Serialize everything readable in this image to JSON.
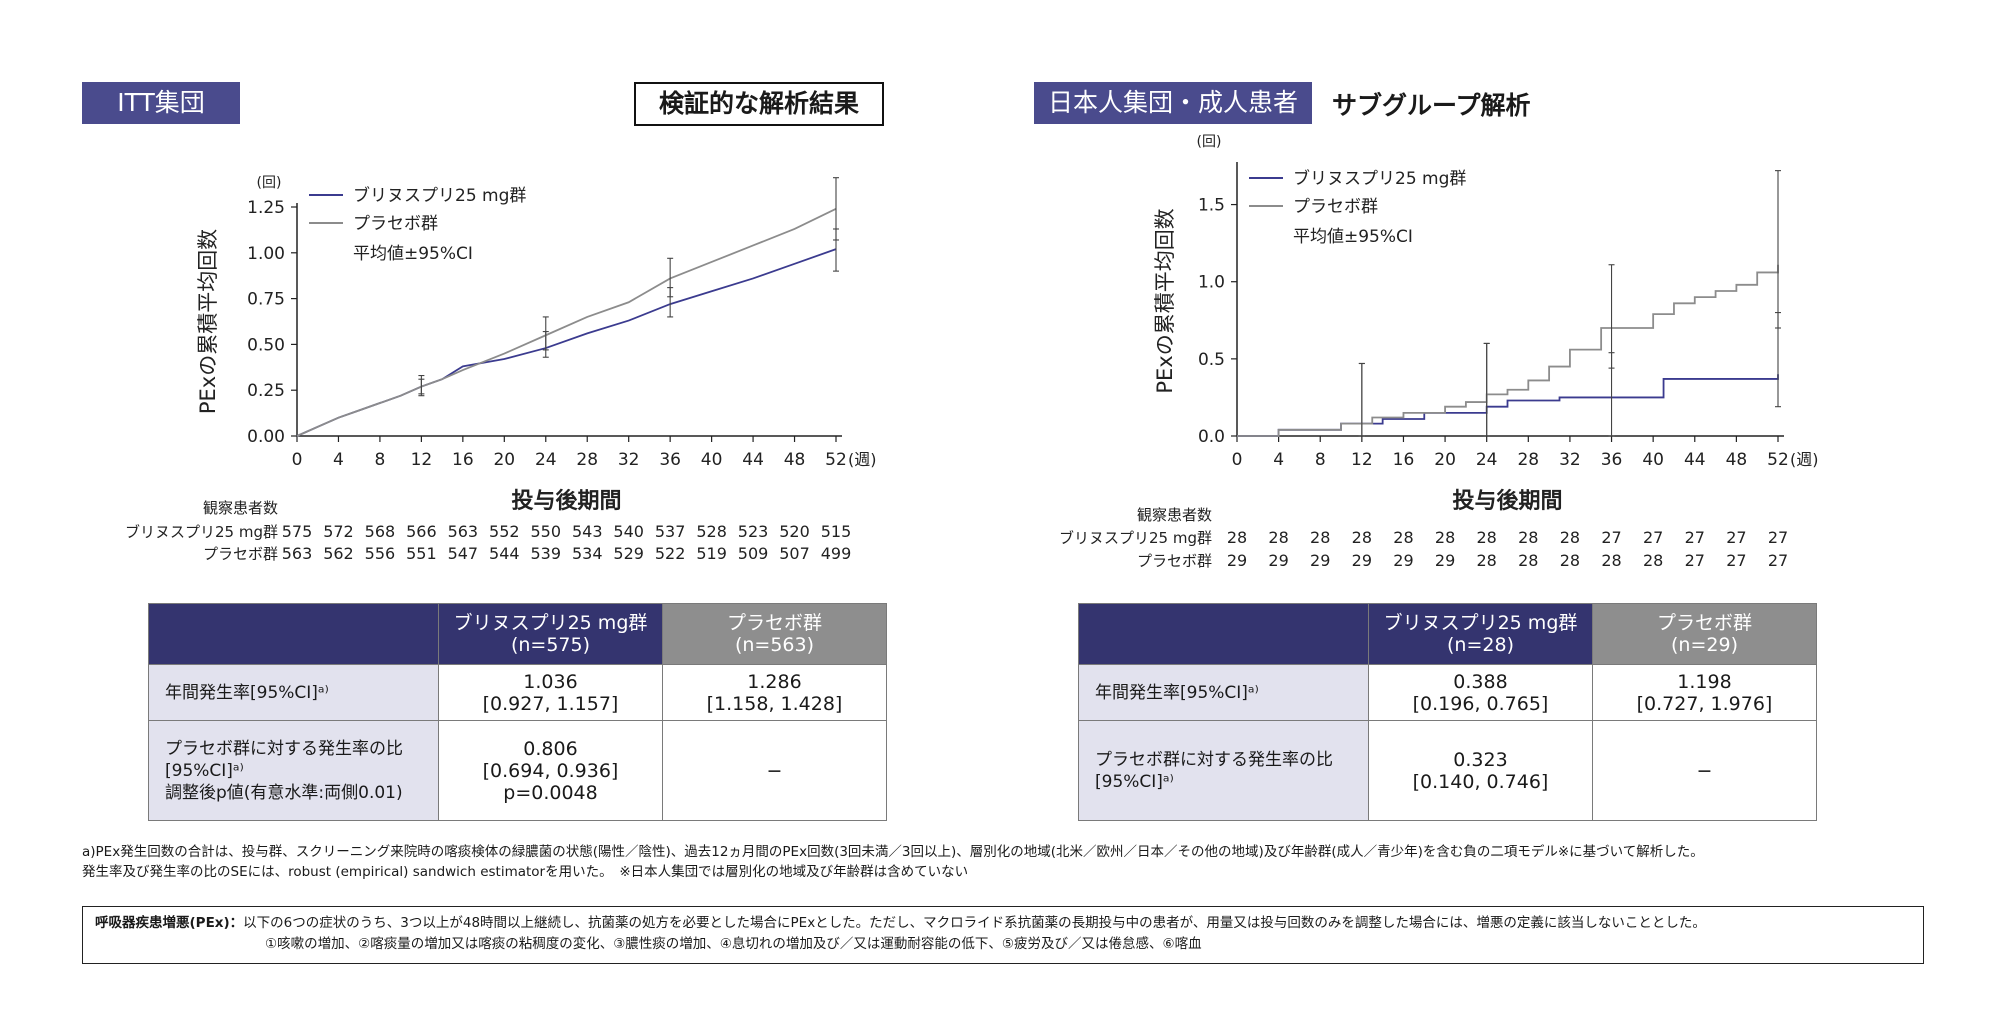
{
  "left": {
    "tag": "ITT集団",
    "title": "検証的な解析結果",
    "table": {
      "col_a": [
        "ブリヌスプリ25 mg群",
        "(n=575)"
      ],
      "col_b": [
        "プラセボ群",
        "(n=563)"
      ],
      "rows": [
        {
          "label": [
            "年間発生率[95%CI]ᵃ⁾"
          ],
          "a": [
            "1.036",
            "[0.927, 1.157]"
          ],
          "b": [
            "1.286",
            "[1.158, 1.428]"
          ]
        },
        {
          "label": [
            "プラセボ群に対する発生率の比",
            "[95%CI]ᵃ⁾",
            "調整後p値(有意水準:両側0.01)"
          ],
          "a": [
            "0.806",
            "[0.694, 0.936]",
            "p=0.0048"
          ],
          "b": [
            "−"
          ]
        }
      ]
    }
  },
  "right": {
    "tag": "日本人集団・成人患者",
    "title": "サブグループ解析",
    "table": {
      "col_a": [
        "ブリヌスプリ25 mg群",
        "(n=28)"
      ],
      "col_b": [
        "プラセボ群",
        "(n=29)"
      ],
      "rows": [
        {
          "label": [
            "年間発生率[95%CI]ᵃ⁾"
          ],
          "a": [
            "0.388",
            "[0.196, 0.765]"
          ],
          "b": [
            "1.198",
            "[0.727, 1.976]"
          ]
        },
        {
          "label": [
            "プラセボ群に対する発生率の比",
            "[95%CI]ᵃ⁾"
          ],
          "a": [
            "0.323",
            "[0.140, 0.746]"
          ],
          "b": [
            "−"
          ]
        }
      ]
    }
  },
  "chart_data": [
    {
      "type": "line",
      "ylabel": "PExの累積平均回数",
      "xlabel": "投与後期間",
      "y_unit": "(回)",
      "x_unit": "(週)",
      "ylim": [
        0,
        1.25
      ],
      "yticks": [
        "0.00",
        "0.25",
        "0.50",
        "0.75",
        "1.00",
        "1.25"
      ],
      "xlim": [
        0,
        52
      ],
      "xticks": [
        0,
        4,
        8,
        12,
        16,
        20,
        24,
        28,
        32,
        36,
        40,
        44,
        48,
        52
      ],
      "grid": false,
      "legend_position": "top-left",
      "legend_note": "平均値±95%CI",
      "series": [
        {
          "name": "ブリヌスプリ25 mg群",
          "color": "#3b3b8f",
          "x": [
            0,
            2,
            4,
            6,
            8,
            10,
            12,
            14,
            16,
            20,
            24,
            28,
            32,
            36,
            40,
            44,
            48,
            52
          ],
          "y": [
            0,
            0.05,
            0.1,
            0.14,
            0.18,
            0.22,
            0.27,
            0.31,
            0.38,
            0.42,
            0.48,
            0.56,
            0.63,
            0.72,
            0.79,
            0.86,
            0.94,
            1.02
          ],
          "ci": [
            {
              "x": 12,
              "lo": 0.22,
              "hi": 0.31
            },
            {
              "x": 24,
              "lo": 0.43,
              "hi": 0.57
            },
            {
              "x": 36,
              "lo": 0.65,
              "hi": 0.81
            },
            {
              "x": 52,
              "lo": 0.9,
              "hi": 1.13
            }
          ]
        },
        {
          "name": "プラセボ群",
          "color": "#8c8c8c",
          "x": [
            0,
            2,
            4,
            6,
            8,
            10,
            12,
            14,
            16,
            20,
            24,
            28,
            32,
            36,
            40,
            44,
            48,
            52
          ],
          "y": [
            0,
            0.05,
            0.1,
            0.14,
            0.18,
            0.22,
            0.27,
            0.31,
            0.36,
            0.45,
            0.55,
            0.65,
            0.73,
            0.86,
            0.95,
            1.04,
            1.13,
            1.24
          ],
          "ci": [
            {
              "x": 12,
              "lo": 0.23,
              "hi": 0.33
            },
            {
              "x": 24,
              "lo": 0.47,
              "hi": 0.65
            },
            {
              "x": 36,
              "lo": 0.76,
              "hi": 0.97
            },
            {
              "x": 52,
              "lo": 1.07,
              "hi": 1.41
            }
          ]
        }
      ],
      "at_risk": {
        "title": "観察患者数",
        "rows": [
          {
            "name": "ブリヌスプリ25 mg群",
            "values": [
              575,
              572,
              568,
              566,
              563,
              552,
              550,
              543,
              540,
              537,
              528,
              523,
              520,
              515
            ]
          },
          {
            "name": "プラセボ群",
            "values": [
              563,
              562,
              556,
              551,
              547,
              544,
              539,
              534,
              529,
              522,
              519,
              509,
              507,
              499
            ]
          }
        ]
      }
    },
    {
      "type": "line",
      "ylabel": "PExの累積平均回数",
      "xlabel": "投与後期間",
      "y_unit": "(回)",
      "x_unit": "(週)",
      "ylim": [
        0,
        1.75
      ],
      "yticks": [
        "0.0",
        "0.5",
        "1.0",
        "1.5"
      ],
      "xlim": [
        0,
        52
      ],
      "xticks": [
        0,
        4,
        8,
        12,
        16,
        20,
        24,
        28,
        32,
        36,
        40,
        44,
        48,
        52
      ],
      "grid": false,
      "legend_position": "top-left",
      "legend_note": "平均値±95%CI",
      "series": [
        {
          "name": "ブリヌスプリ25 mg群",
          "color": "#3b3b8f",
          "step": true,
          "x": [
            0,
            4,
            10,
            14,
            18,
            24,
            26,
            31,
            41,
            52
          ],
          "y": [
            0,
            0.04,
            0.08,
            0.11,
            0.15,
            0.19,
            0.23,
            0.25,
            0.37,
            0.4
          ],
          "ci": [
            {
              "x": 12,
              "lo": 0.0,
              "hi": 0.47
            },
            {
              "x": 24,
              "lo": 0.0,
              "hi": 0.6
            },
            {
              "x": 36,
              "lo": 0.0,
              "hi": 0.54
            },
            {
              "x": 52,
              "lo": 0.19,
              "hi": 0.8
            }
          ]
        },
        {
          "name": "プラセボ群",
          "color": "#8c8c8c",
          "step": true,
          "x": [
            0,
            4,
            10,
            13,
            16,
            20,
            22,
            24,
            26,
            28,
            30,
            32,
            35,
            40,
            42,
            44,
            46,
            48,
            50,
            52
          ],
          "y": [
            0,
            0.04,
            0.08,
            0.12,
            0.15,
            0.19,
            0.22,
            0.27,
            0.3,
            0.36,
            0.45,
            0.56,
            0.7,
            0.79,
            0.86,
            0.9,
            0.94,
            0.98,
            1.06,
            1.11
          ],
          "ci": [
            {
              "x": 12,
              "lo": 0.0,
              "hi": 0.47
            },
            {
              "x": 24,
              "lo": 0.0,
              "hi": 0.6
            },
            {
              "x": 36,
              "lo": 0.44,
              "hi": 1.11
            },
            {
              "x": 52,
              "lo": 0.7,
              "hi": 1.72
            }
          ]
        }
      ],
      "at_risk": {
        "title": "観察患者数",
        "rows": [
          {
            "name": "ブリヌスプリ25 mg群",
            "values": [
              28,
              28,
              28,
              28,
              28,
              28,
              28,
              28,
              28,
              27,
              27,
              27,
              27,
              27
            ]
          },
          {
            "name": "プラセボ群",
            "values": [
              29,
              29,
              29,
              29,
              29,
              29,
              28,
              28,
              28,
              28,
              28,
              27,
              27,
              27
            ]
          }
        ]
      }
    }
  ],
  "footnote": [
    "a)PEx発生回数の合計は、投与群、スクリーニング来院時の喀痰検体の緑膿菌の状態(陽性／陰性)、過去12ヵ月間のPEx回数(3回未満／3回以上)、層別化の地域(北米／欧州／日本／その他の地域)及び年齢群(成人／青少年)を含む負の二項モデル※に基づいて解析した。",
    "発生率及び発生率の比のSEには、robust (empirical) sandwich estimatorを用いた。　※日本人集団では層別化の地域及び年齢群は含めていない"
  ],
  "definition": {
    "term": "呼吸器疾患増悪(PEx)：",
    "line1": "以下の6つの症状のうち、3つ以上が48時間以上継続し、抗菌薬の処方を必要とした場合にPExとした。ただし、マクロライド系抗菌薬の長期投与中の患者が、用量又は投与回数のみを調整した場合には、増悪の定義に該当しないこととした。",
    "line2": "①咳嗽の増加、②喀痰量の増加又は喀痰の粘稠度の変化、③膿性痰の増加、④息切れの増加及び／又は運動耐容能の低下、⑤疲労及び／又は倦怠感、⑥喀血"
  }
}
